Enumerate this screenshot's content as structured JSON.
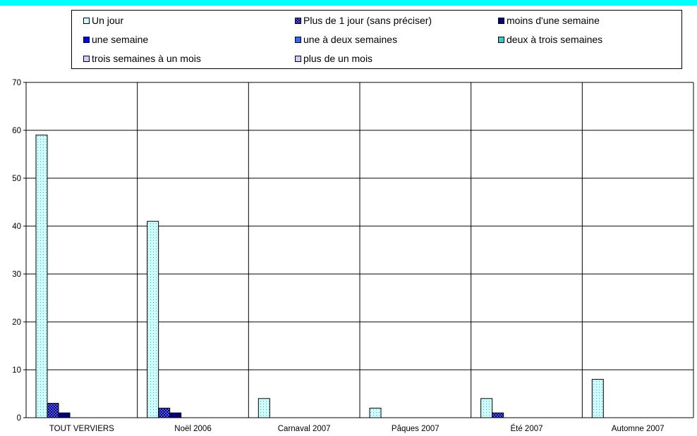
{
  "chart_data": {
    "type": "bar",
    "categories": [
      "TOUT VERVIERS",
      "Noël 2006",
      "Carnaval 2007",
      "Pâques 2007",
      "Été 2007",
      "Automne 2007"
    ],
    "series": [
      {
        "name": "Un jour",
        "color": "#ccffff",
        "pattern": "dots",
        "values": [
          59,
          41,
          4,
          2,
          4,
          8
        ]
      },
      {
        "name": "Plus de 1 jour (sans préciser)",
        "color": "#3333cc",
        "pattern": "check",
        "values": [
          3,
          2,
          0,
          0,
          1,
          0
        ]
      },
      {
        "name": "moins d'une semaine",
        "color": "#000080",
        "pattern": "solid",
        "values": [
          1,
          1,
          0,
          0,
          0,
          0
        ]
      },
      {
        "name": "une semaine",
        "color": "#0000ff",
        "pattern": "solid",
        "values": [
          0,
          0,
          0,
          0,
          0,
          0
        ]
      },
      {
        "name": "une à deux semaines",
        "color": "#3366ff",
        "pattern": "solid",
        "values": [
          0,
          0,
          0,
          0,
          0,
          0
        ]
      },
      {
        "name": "deux à trois semaines",
        "color": "#33cccc",
        "pattern": "solid",
        "values": [
          0,
          0,
          0,
          0,
          0,
          0
        ]
      },
      {
        "name": "trois semaines à un mois",
        "color": "#ccccff",
        "pattern": "solid",
        "values": [
          0,
          0,
          0,
          0,
          0,
          0
        ]
      },
      {
        "name": "plus de un mois",
        "color": "#ccccff",
        "pattern": "solid",
        "values": [
          0,
          0,
          0,
          0,
          0,
          0
        ]
      }
    ],
    "ylim": [
      0,
      70
    ],
    "yticks": [
      0,
      10,
      20,
      30,
      40,
      50,
      60,
      70
    ],
    "grid": true,
    "legend_position": "top"
  }
}
